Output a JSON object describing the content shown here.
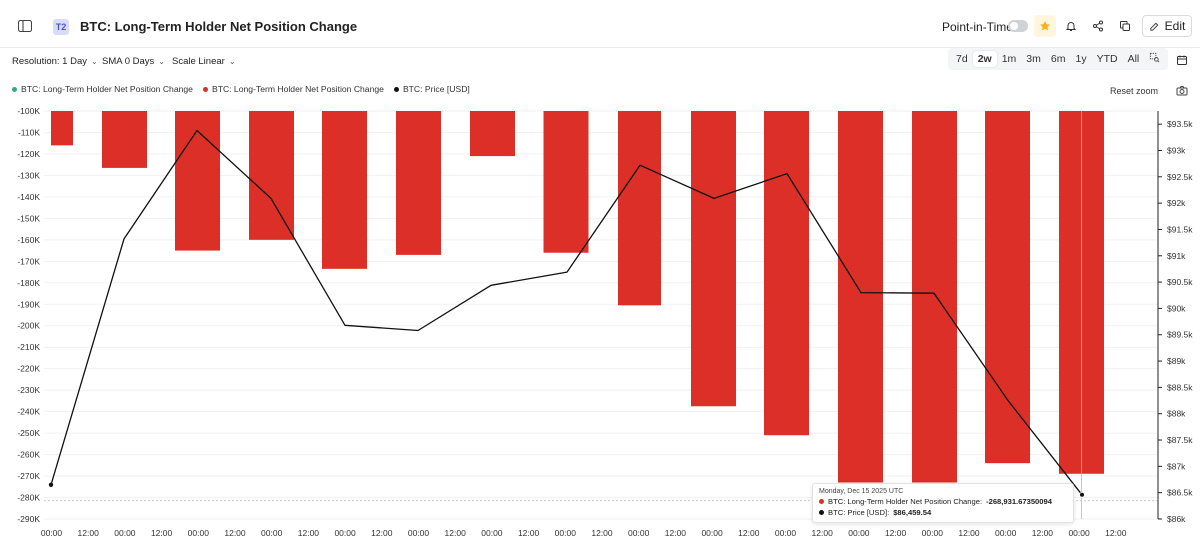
{
  "header": {
    "badge": "T2",
    "title": "BTC: Long-Term Holder Net Position Change",
    "point_in_time_label": "Point-in-Time",
    "point_in_time_on": false,
    "edit_label": "Edit",
    "icons": [
      "sidebar-icon",
      "star-icon",
      "bell-icon",
      "share-icon",
      "copy-icon",
      "pencil-icon"
    ]
  },
  "controls": {
    "resolution": "Resolution: 1 Day",
    "sma": "SMA 0 Days",
    "scale": "Scale Linear",
    "ranges": [
      "7d",
      "2w",
      "1m",
      "3m",
      "6m",
      "1y",
      "YTD",
      "All"
    ],
    "active_range": "2w"
  },
  "legend": [
    {
      "label": "BTC: Long-Term Holder Net Position Change",
      "color": "#3aa87a"
    },
    {
      "label": "BTC: Long-Term Holder Net Position Change",
      "color": "#dc2f27"
    },
    {
      "label": "BTC: Price [USD]",
      "color": "#111111"
    }
  ],
  "reset_zoom": "Reset zoom",
  "tooltip": {
    "date": "Monday, Dec 15 2025 UTC",
    "rows": [
      {
        "label": "BTC: Long-Term Holder Net Position Change:",
        "value": "-268,931.67350094",
        "color": "#dc2f27"
      },
      {
        "label": "BTC: Price [USD]:",
        "value": "$86,459.54",
        "color": "#111111"
      }
    ]
  },
  "chart_data": {
    "type": "bar",
    "x_tick_labels": [
      "00:00",
      "12:00",
      "00:00",
      "12:00",
      "00:00",
      "12:00",
      "00:00",
      "12:00",
      "00:00",
      "12:00",
      "00:00",
      "12:00",
      "00:00",
      "12:00",
      "00:00",
      "12:00",
      "00:00",
      "12:00",
      "00:00",
      "12:00",
      "00:00",
      "12:00",
      "00:00",
      "12:00",
      "00:00",
      "12:00",
      "00:00",
      "12:00",
      "00:00",
      "12:00"
    ],
    "left_axis": {
      "range": [
        -290000,
        -100000
      ],
      "ticks": [
        -100000,
        -110000,
        -120000,
        -130000,
        -140000,
        -150000,
        -160000,
        -170000,
        -180000,
        -190000,
        -200000,
        -210000,
        -220000,
        -230000,
        -240000,
        -250000,
        -260000,
        -270000,
        -280000,
        -290000
      ],
      "tick_labels": [
        "-100K",
        "-110K",
        "-120K",
        "-130K",
        "-140K",
        "-150K",
        "-160K",
        "-170K",
        "-180K",
        "-190K",
        "-200K",
        "-210K",
        "-220K",
        "-230K",
        "-240K",
        "-250K",
        "-260K",
        "-270K",
        "-280K",
        "-290K"
      ]
    },
    "right_axis": {
      "range": [
        86000,
        93750
      ],
      "ticks": [
        93500,
        93000,
        92500,
        92000,
        91500,
        91000,
        90500,
        90000,
        89500,
        89000,
        88500,
        88000,
        87500,
        87000,
        86500,
        86000
      ],
      "tick_labels": [
        "$93.5k",
        "$93k",
        "$92.5k",
        "$92k",
        "$91.5k",
        "$91k",
        "$90.5k",
        "$90k",
        "$89.5k",
        "$89k",
        "$88.5k",
        "$88k",
        "$87.5k",
        "$87k",
        "$86.5k",
        "$86k"
      ]
    },
    "grid": true,
    "series": [
      {
        "name": "BTC: Long-Term Holder Net Position Change",
        "type": "bar",
        "color": "#dc2f27",
        "values": [
          -116000,
          -126500,
          -165000,
          -160000,
          -173500,
          -167000,
          -121000,
          -166000,
          -190500,
          -237500,
          -251000,
          -273000,
          -273000,
          -264000,
          -268931.67
        ]
      },
      {
        "name": "BTC: Price [USD]",
        "type": "line",
        "color": "#111111",
        "values": [
          86650,
          91320,
          93380,
          92090,
          89680,
          89580,
          90440,
          90690,
          92720,
          92090,
          92560,
          90300,
          90290,
          88250,
          86459.54
        ]
      }
    ]
  }
}
